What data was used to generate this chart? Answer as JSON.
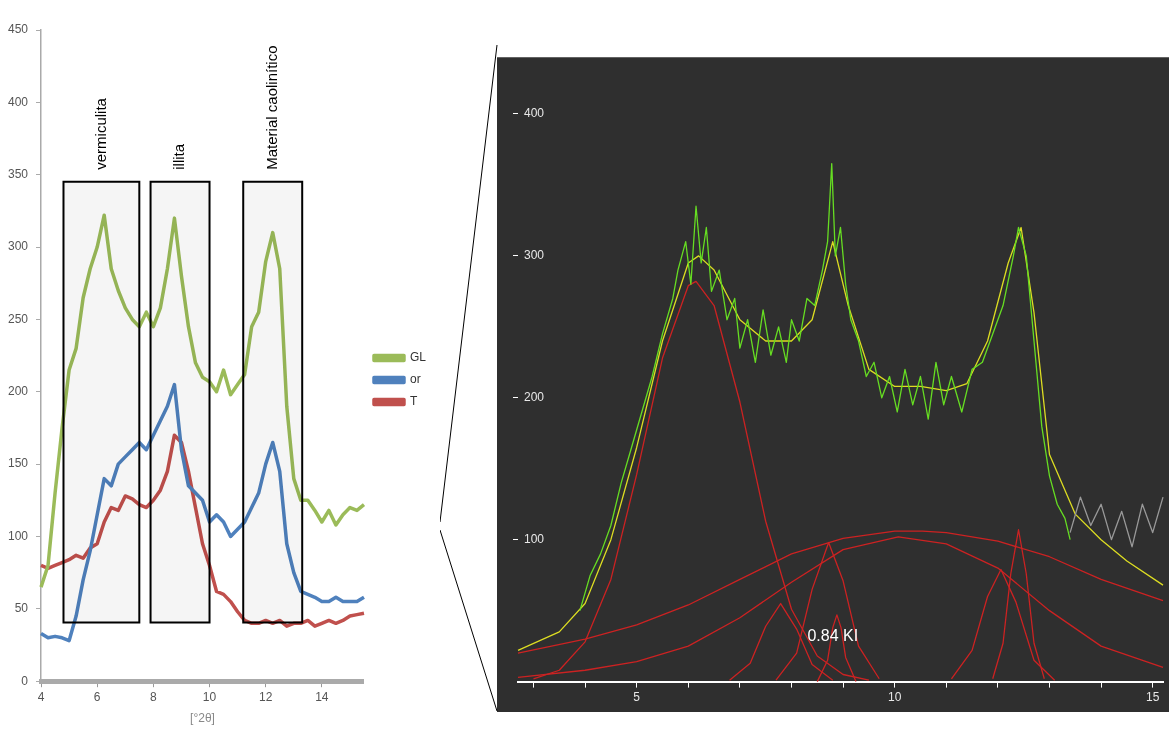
{
  "chart_data": [
    {
      "type": "line",
      "xlabel": "[°2θ]",
      "x": [
        4,
        4.25,
        4.5,
        4.75,
        5,
        5.25,
        5.5,
        5.75,
        6,
        6.25,
        6.5,
        6.75,
        7,
        7.25,
        7.5,
        7.75,
        8,
        8.25,
        8.5,
        8.75,
        9,
        9.25,
        9.5,
        9.75,
        10,
        10.25,
        10.5,
        10.75,
        11,
        11.25,
        11.5,
        11.75,
        12,
        12.25,
        12.5,
        12.75,
        13,
        13.25,
        13.5,
        13.75,
        14,
        14.25,
        14.5,
        14.75,
        15,
        15.25,
        15.5
      ],
      "series": [
        {
          "name": "GL",
          "color": "#9bbb59",
          "values": [
            65,
            80,
            130,
            175,
            215,
            230,
            265,
            285,
            300,
            322,
            285,
            270,
            258,
            250,
            245,
            255,
            245,
            258,
            285,
            320,
            280,
            245,
            220,
            210,
            207,
            200,
            215,
            198,
            205,
            212,
            245,
            255,
            290,
            310,
            285,
            190,
            140,
            125,
            125,
            118,
            110,
            118,
            108,
            115,
            120,
            118,
            122
          ]
        },
        {
          "name": "or",
          "color": "#4f81bd",
          "values": [
            33,
            30,
            31,
            30,
            28,
            45,
            70,
            90,
            115,
            140,
            135,
            150,
            155,
            160,
            165,
            160,
            170,
            180,
            190,
            205,
            160,
            135,
            130,
            125,
            110,
            115,
            110,
            100,
            105,
            110,
            120,
            130,
            150,
            165,
            145,
            95,
            75,
            62,
            60,
            58,
            55,
            55,
            58,
            55,
            55,
            55,
            58
          ]
        },
        {
          "name": "T",
          "color": "#c0504d",
          "values": [
            80,
            78,
            80,
            82,
            84,
            87,
            85,
            92,
            95,
            110,
            120,
            118,
            128,
            126,
            122,
            120,
            125,
            132,
            145,
            170,
            165,
            145,
            120,
            95,
            80,
            62,
            60,
            55,
            48,
            42,
            40,
            40,
            42,
            40,
            42,
            38,
            40,
            40,
            42,
            38,
            40,
            42,
            40,
            42,
            45,
            46,
            47
          ]
        }
      ],
      "xlim": [
        4,
        15.5
      ],
      "xticks": [
        4,
        6,
        8,
        10,
        12,
        14
      ],
      "ylim": [
        0,
        450
      ],
      "yticks": [
        0,
        50,
        100,
        150,
        200,
        250,
        300,
        350,
        400,
        450
      ],
      "marker": "none",
      "legend": "right",
      "bands": [
        {
          "axis": "x",
          "from": 4.8,
          "to": 7.5,
          "label": "vermiculita",
          "color": "#000000"
        },
        {
          "axis": "x",
          "from": 7.9,
          "to": 10,
          "label": "illita",
          "color": "#000000"
        },
        {
          "axis": "x",
          "from": 11.2,
          "to": 13.3,
          "label": "Material caolinítico",
          "color": "#000000"
        }
      ]
    },
    {
      "type": "line",
      "marker": "none",
      "legend": false,
      "xlim": [
        2.7,
        15.2
      ],
      "ylim": [
        0,
        440
      ],
      "xticks": [
        {
          "value": 3,
          "label": null
        },
        {
          "value": 4,
          "label": null
        },
        5,
        {
          "value": 6,
          "label": null
        },
        {
          "value": 7,
          "label": null
        },
        {
          "value": 8,
          "label": null
        },
        {
          "value": 9,
          "label": null
        },
        10,
        {
          "value": 11,
          "label": null
        },
        {
          "value": 12,
          "label": null
        },
        {
          "value": 13,
          "label": null
        },
        {
          "value": 14,
          "label": null
        },
        15
      ],
      "yticks": [
        100,
        200,
        300,
        400
      ],
      "series": [
        {
          "color": "#66dd22",
          "x": [
            3.9,
            4.1,
            4.3,
            4.5,
            4.7,
            4.9,
            5.1,
            5.3,
            5.5,
            5.7,
            5.8,
            5.95,
            6.05,
            6.15,
            6.25,
            6.35,
            6.45,
            6.6,
            6.75,
            6.9,
            7.0,
            7.15,
            7.3,
            7.45,
            7.6,
            7.75,
            7.9,
            8.0,
            8.15,
            8.3,
            8.45,
            8.6,
            8.7,
            8.78,
            8.85,
            8.95,
            9.05,
            9.15,
            9.3,
            9.45,
            9.6,
            9.75,
            9.9,
            10.05,
            10.2,
            10.35,
            10.5,
            10.65,
            10.8,
            10.95,
            11.1,
            11.3,
            11.5,
            11.7,
            11.9,
            12.1,
            12.3,
            12.4,
            12.55,
            12.7,
            12.85,
            13.0,
            13.15,
            13.3,
            13.4
          ],
          "values": [
            50,
            75,
            90,
            110,
            140,
            165,
            190,
            215,
            245,
            270,
            290,
            310,
            280,
            335,
            295,
            320,
            275,
            290,
            255,
            270,
            235,
            255,
            225,
            262,
            230,
            250,
            225,
            255,
            240,
            270,
            265,
            290,
            310,
            365,
            300,
            320,
            280,
            255,
            240,
            215,
            225,
            200,
            215,
            190,
            220,
            195,
            215,
            185,
            225,
            195,
            215,
            190,
            220,
            225,
            245,
            265,
            300,
            320,
            300,
            240,
            180,
            145,
            125,
            115,
            100
          ]
        },
        {
          "color": "#999999",
          "x": [
            13.4,
            13.6,
            13.8,
            14.0,
            14.2,
            14.4,
            14.6,
            14.8,
            15.0,
            15.2
          ],
          "values": [
            105,
            130,
            110,
            125,
            100,
            120,
            95,
            125,
            105,
            130
          ]
        },
        {
          "color": "#dddd22",
          "x": [
            2.7,
            3.5,
            4,
            4.5,
            5,
            5.5,
            6,
            6.2,
            6.5,
            7,
            7.5,
            8,
            8.4,
            8.8,
            9.1,
            9.5,
            10,
            10.5,
            11,
            11.4,
            11.8,
            12.2,
            12.45,
            12.7,
            13,
            13.5,
            14,
            14.5,
            15.2
          ],
          "values": [
            22,
            35,
            55,
            100,
            165,
            240,
            295,
            300,
            290,
            255,
            240,
            240,
            255,
            310,
            265,
            220,
            208,
            208,
            205,
            210,
            240,
            295,
            320,
            260,
            160,
            118,
            100,
            85,
            68
          ]
        },
        {
          "color": "#cc2222",
          "x": [
            3,
            3.5,
            4,
            4.5,
            5,
            5.5,
            6,
            6.15,
            6.5,
            7,
            7.5,
            8,
            8.5,
            9,
            9.5
          ],
          "values": [
            2,
            8,
            28,
            72,
            146,
            228,
            279,
            282,
            265,
            197,
            113,
            51,
            18,
            5,
            1
          ]
        },
        {
          "color": "#cc2222",
          "x": [
            6.8,
            7.2,
            7.5,
            7.79,
            8.1,
            8.4,
            8.8
          ],
          "values": [
            1,
            13,
            39,
            55,
            37,
            12,
            1
          ]
        },
        {
          "color": "#cc2222",
          "x": [
            7.7,
            8.1,
            8.4,
            8.72,
            9.0,
            9.3,
            9.7
          ],
          "values": [
            1,
            20,
            65,
            98,
            71,
            25,
            2
          ]
        },
        {
          "color": "#cc2222",
          "x": [
            8.5,
            8.7,
            8.8,
            8.88,
            8.96,
            9.05,
            9.25
          ],
          "values": [
            0,
            15,
            38,
            47,
            38,
            17,
            0
          ]
        },
        {
          "color": "#cc2222",
          "x": [
            2.7,
            4,
            5,
            6,
            7,
            8,
            9,
            10,
            10.54,
            11,
            12,
            13,
            14,
            15.2
          ],
          "values": [
            20,
            30,
            40,
            54,
            72,
            90,
            101,
            106,
            106,
            105,
            99,
            88,
            72,
            57
          ]
        },
        {
          "color": "#cc2222",
          "x": [
            2.7,
            4,
            5,
            6,
            7,
            8,
            9,
            10.07,
            11,
            12,
            13,
            14,
            15.2
          ],
          "values": [
            3,
            8,
            14,
            25,
            45,
            70,
            93,
            102,
            97,
            80,
            50,
            25,
            10
          ]
        },
        {
          "color": "#cc2222",
          "x": [
            11.1,
            11.5,
            11.8,
            12.06,
            12.35,
            12.7,
            13.1
          ],
          "values": [
            2,
            22,
            60,
            79,
            56,
            15,
            1
          ]
        },
        {
          "color": "#cc2222",
          "x": [
            11.9,
            12.1,
            12.25,
            12.4,
            12.55,
            12.7,
            12.9
          ],
          "values": [
            2,
            27,
            76,
            107,
            76,
            27,
            2
          ]
        }
      ],
      "annotations": [
        {
          "text": "0.84 KI",
          "x": 8.8,
          "y": 47
        }
      ]
    }
  ]
}
